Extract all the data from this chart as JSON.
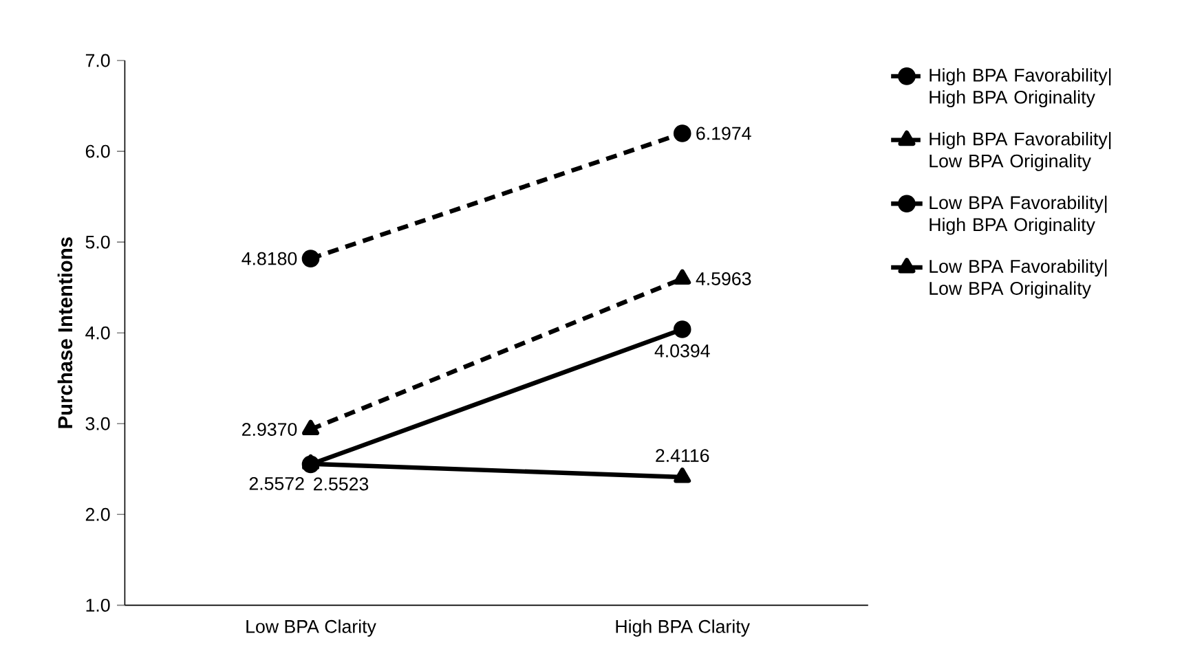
{
  "chart_data": {
    "type": "line",
    "ylabel": "Purchase Intentions",
    "categories": [
      "Low BPA Clarity",
      "High BPA Clarity"
    ],
    "ylim": [
      1,
      7
    ],
    "yticks": [
      {
        "value": 1,
        "label": "1.0"
      },
      {
        "value": 2,
        "label": "2.0"
      },
      {
        "value": 3,
        "label": "3.0"
      },
      {
        "value": 4,
        "label": "4.0"
      },
      {
        "value": 5,
        "label": "5.0"
      },
      {
        "value": 6,
        "label": "6.0"
      },
      {
        "value": 7,
        "label": "7.0"
      }
    ],
    "legend": "right",
    "series": [
      {
        "name": "High BPA Favorability| High BPA Originality",
        "color": "#000000",
        "marker": "circle",
        "line_style": "dashed",
        "values": [
          4.818,
          6.1974
        ],
        "value_labels": [
          "4.8180",
          "6.1974"
        ]
      },
      {
        "name": "High BPA Favorability| Low BPA Originality",
        "color": "#000000",
        "marker": "triangle",
        "line_style": "dashed",
        "values": [
          2.937,
          4.5963
        ],
        "value_labels": [
          "2.9370",
          "4.5963"
        ]
      },
      {
        "name": "Low BPA Favorability| High BPA Originality",
        "color": "#000000",
        "marker": "circle",
        "line_style": "solid",
        "values": [
          2.5523,
          4.0394
        ],
        "value_labels": [
          "2.5523",
          "4.0394"
        ]
      },
      {
        "name": "Low BPA Favorability| Low BPA Originality",
        "color": "#000000",
        "marker": "triangle",
        "line_style": "solid",
        "values": [
          2.5572,
          2.4116
        ],
        "value_labels": [
          "2.5572",
          "2.4116"
        ]
      }
    ]
  }
}
